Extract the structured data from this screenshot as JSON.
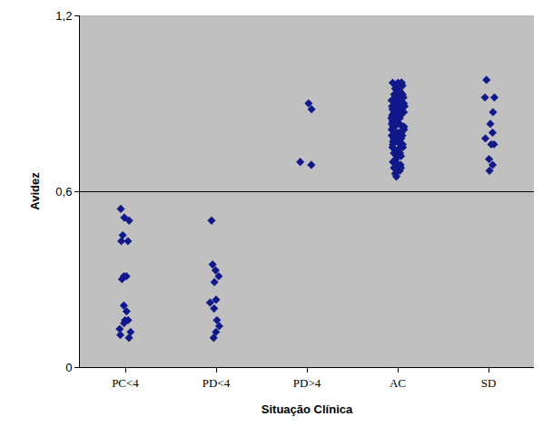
{
  "chart_data": {
    "type": "scatter",
    "x_label": "Situação Clínica",
    "y_label": "Avidez",
    "categories": [
      "PC<4",
      "PD<4",
      "PD>4",
      "AC",
      "SD"
    ],
    "values": [
      [
        0.54,
        0.51,
        0.5,
        0.45,
        0.43,
        0.43,
        0.31,
        0.31,
        0.3,
        0.21,
        0.19,
        0.16,
        0.16,
        0.15,
        0.13,
        0.12,
        0.11,
        0.1
      ],
      [
        0.5,
        0.35,
        0.33,
        0.31,
        0.29,
        0.23,
        0.22,
        0.2,
        0.16,
        0.14,
        0.12,
        0.1
      ],
      [
        0.9,
        0.88,
        0.7,
        0.69
      ],
      [
        0.97,
        0.97,
        0.97,
        0.97,
        0.96,
        0.96,
        0.95,
        0.95,
        0.95,
        0.94,
        0.94,
        0.93,
        0.93,
        0.93,
        0.92,
        0.92,
        0.92,
        0.91,
        0.91,
        0.91,
        0.9,
        0.9,
        0.9,
        0.9,
        0.89,
        0.89,
        0.89,
        0.88,
        0.88,
        0.88,
        0.88,
        0.87,
        0.87,
        0.87,
        0.86,
        0.86,
        0.86,
        0.86,
        0.85,
        0.85,
        0.85,
        0.84,
        0.84,
        0.84,
        0.84,
        0.83,
        0.83,
        0.83,
        0.82,
        0.82,
        0.82,
        0.82,
        0.81,
        0.81,
        0.81,
        0.8,
        0.8,
        0.8,
        0.8,
        0.79,
        0.79,
        0.79,
        0.78,
        0.78,
        0.78,
        0.77,
        0.77,
        0.77,
        0.76,
        0.76,
        0.76,
        0.75,
        0.75,
        0.75,
        0.74,
        0.74,
        0.73,
        0.73,
        0.72,
        0.72,
        0.71,
        0.7,
        0.7,
        0.69,
        0.69,
        0.68,
        0.68,
        0.67,
        0.67,
        0.66,
        0.65
      ],
      [
        0.98,
        0.92,
        0.92,
        0.87,
        0.83,
        0.8,
        0.78,
        0.76,
        0.76,
        0.71,
        0.69,
        0.67
      ]
    ],
    "color": "#10188a",
    "marker": "diamond",
    "ylim": [
      0,
      1.2
    ],
    "yticks": [
      0,
      {
        "value": 0.6,
        "label": "0,6"
      },
      {
        "value": 1.2,
        "label": "1,2"
      }
    ],
    "grid": "y"
  }
}
